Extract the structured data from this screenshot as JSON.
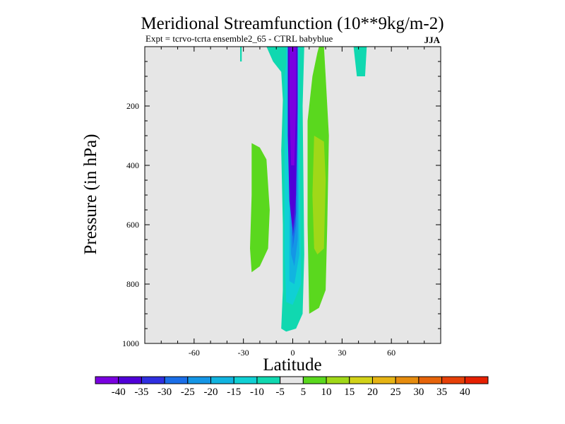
{
  "chart_data": {
    "type": "heatmap",
    "title": "Meridional Streamfunction (10**9kg/m-2)",
    "subtitle": "Expt = tcrvo-tcrta  ensemble2_65 - CTRL babyblue",
    "season": "JJA",
    "xlabel": "Latitude",
    "ylabel": "Pressure (in hPa)",
    "xlim": [
      -90,
      90
    ],
    "ylim": [
      1000,
      0
    ],
    "y_inverted": true,
    "x_ticks": [
      {
        "value": -60,
        "label": "-60"
      },
      {
        "value": -30,
        "label": "-30"
      },
      {
        "value": 0,
        "label": "0"
      },
      {
        "value": 30,
        "label": "30"
      },
      {
        "value": 60,
        "label": "60"
      }
    ],
    "y_ticks": [
      {
        "value": 200,
        "label": "200"
      },
      {
        "value": 400,
        "label": "400"
      },
      {
        "value": 600,
        "label": "600"
      },
      {
        "value": 800,
        "label": "800"
      },
      {
        "value": 1000,
        "label": "1000"
      }
    ],
    "background_color": "#e6e6e6",
    "colorbar": {
      "colors": [
        "#7a00e0",
        "#5000d8",
        "#2f2fe0",
        "#1a6ee8",
        "#1496e6",
        "#11b4e0",
        "#10d0d4",
        "#10d8b0",
        "#e6e6e6",
        "#5ad81e",
        "#a0d818",
        "#d2d218",
        "#e6b414",
        "#e68c0e",
        "#e6640a",
        "#e64008",
        "#e62000"
      ],
      "labels": [
        "-40",
        "-35",
        "-30",
        "-25",
        "-20",
        "-15",
        "-10",
        "-5",
        "5",
        "10",
        "15",
        "20",
        "25",
        "30",
        "35",
        "40"
      ]
    },
    "regions": [
      {
        "value": "-5",
        "color": "#10d8b0",
        "points": [
          [
            -23,
            0
          ],
          [
            -16,
            0
          ],
          [
            -12,
            50
          ],
          [
            -7,
            85
          ],
          [
            -6,
            180
          ],
          [
            -7,
            350
          ],
          [
            -6,
            600
          ],
          [
            -6,
            820
          ],
          [
            -7,
            950
          ],
          [
            -4,
            960
          ],
          [
            2,
            950
          ],
          [
            6,
            900
          ],
          [
            7,
            700
          ],
          [
            6,
            200
          ],
          [
            7,
            0
          ],
          [
            0,
            0
          ]
        ]
      },
      {
        "value": "-5",
        "color": "#10d8b0",
        "points": [
          [
            -32,
            0
          ],
          [
            -31,
            0
          ],
          [
            -31,
            50
          ],
          [
            -32,
            50
          ]
        ]
      },
      {
        "value": "-5",
        "color": "#10d8b0",
        "points": [
          [
            37,
            0
          ],
          [
            45,
            0
          ],
          [
            44,
            100
          ],
          [
            39,
            100
          ]
        ]
      },
      {
        "value": "-10",
        "color": "#10d0d4",
        "points": [
          [
            -14,
            0
          ],
          [
            -4,
            0
          ],
          [
            -4,
            60
          ],
          [
            -5,
            100
          ],
          [
            -5,
            500
          ],
          [
            -5,
            700
          ],
          [
            -4,
            860
          ],
          [
            0,
            870
          ],
          [
            5,
            800
          ],
          [
            4,
            200
          ],
          [
            4,
            0
          ]
        ]
      },
      {
        "value": "-15",
        "color": "#11b4e0",
        "points": [
          [
            -9,
            0
          ],
          [
            -3,
            0
          ],
          [
            -2,
            200
          ],
          [
            -2,
            650
          ],
          [
            -2,
            790
          ],
          [
            1,
            800
          ],
          [
            4,
            700
          ],
          [
            3,
            200
          ],
          [
            3,
            0
          ]
        ]
      },
      {
        "value": "-20",
        "color": "#1496e6",
        "points": [
          [
            -5,
            0
          ],
          [
            -2,
            0
          ],
          [
            -2,
            400
          ],
          [
            -1,
            700
          ],
          [
            1,
            740
          ],
          [
            3,
            650
          ],
          [
            3,
            200
          ],
          [
            3,
            0
          ]
        ]
      },
      {
        "value": "-25",
        "color": "#1a6ee8",
        "points": [
          [
            -4,
            0
          ],
          [
            -1,
            0
          ],
          [
            -1,
            400
          ],
          [
            0,
            680
          ],
          [
            2,
            600
          ],
          [
            2,
            0
          ]
        ]
      },
      {
        "value": "-30",
        "color": "#2f2fe0",
        "points": [
          [
            -3,
            0
          ],
          [
            -1,
            0
          ],
          [
            -1,
            500
          ],
          [
            0,
            640
          ],
          [
            2,
            560
          ],
          [
            2,
            0
          ]
        ]
      },
      {
        "value": "-35",
        "color": "#5000d8",
        "points": [
          [
            -3,
            0
          ],
          [
            3,
            0
          ],
          [
            3,
            200
          ],
          [
            2,
            500
          ],
          [
            0,
            620
          ],
          [
            -2,
            520
          ],
          [
            -3,
            300
          ]
        ]
      },
      {
        "value": "-40",
        "color": "#7a00e0",
        "points": [
          [
            -2,
            0
          ],
          [
            2,
            0
          ],
          [
            2,
            200
          ],
          [
            1,
            400
          ],
          [
            -1,
            400
          ],
          [
            -2,
            200
          ]
        ]
      },
      {
        "value": "5",
        "color": "#5ad81e",
        "points": [
          [
            -25,
            325
          ],
          [
            -20,
            340
          ],
          [
            -16,
            380
          ],
          [
            -14,
            550
          ],
          [
            -15,
            680
          ],
          [
            -20,
            740
          ],
          [
            -25,
            760
          ],
          [
            -26,
            680
          ],
          [
            -25,
            500
          ]
        ]
      },
      {
        "value": "5",
        "color": "#5ad81e",
        "points": [
          [
            16,
            0
          ],
          [
            19,
            0
          ],
          [
            20,
            100
          ],
          [
            22,
            300
          ],
          [
            21,
            600
          ],
          [
            20,
            820
          ],
          [
            16,
            880
          ],
          [
            10,
            900
          ],
          [
            9,
            600
          ],
          [
            9,
            250
          ],
          [
            12,
            100
          ],
          [
            15,
            20
          ]
        ]
      },
      {
        "value": "10",
        "color": "#a0d818",
        "points": [
          [
            13,
            300
          ],
          [
            19,
            320
          ],
          [
            20,
            450
          ],
          [
            19,
            680
          ],
          [
            15,
            700
          ],
          [
            13,
            680
          ],
          [
            12,
            500
          ]
        ]
      }
    ]
  }
}
